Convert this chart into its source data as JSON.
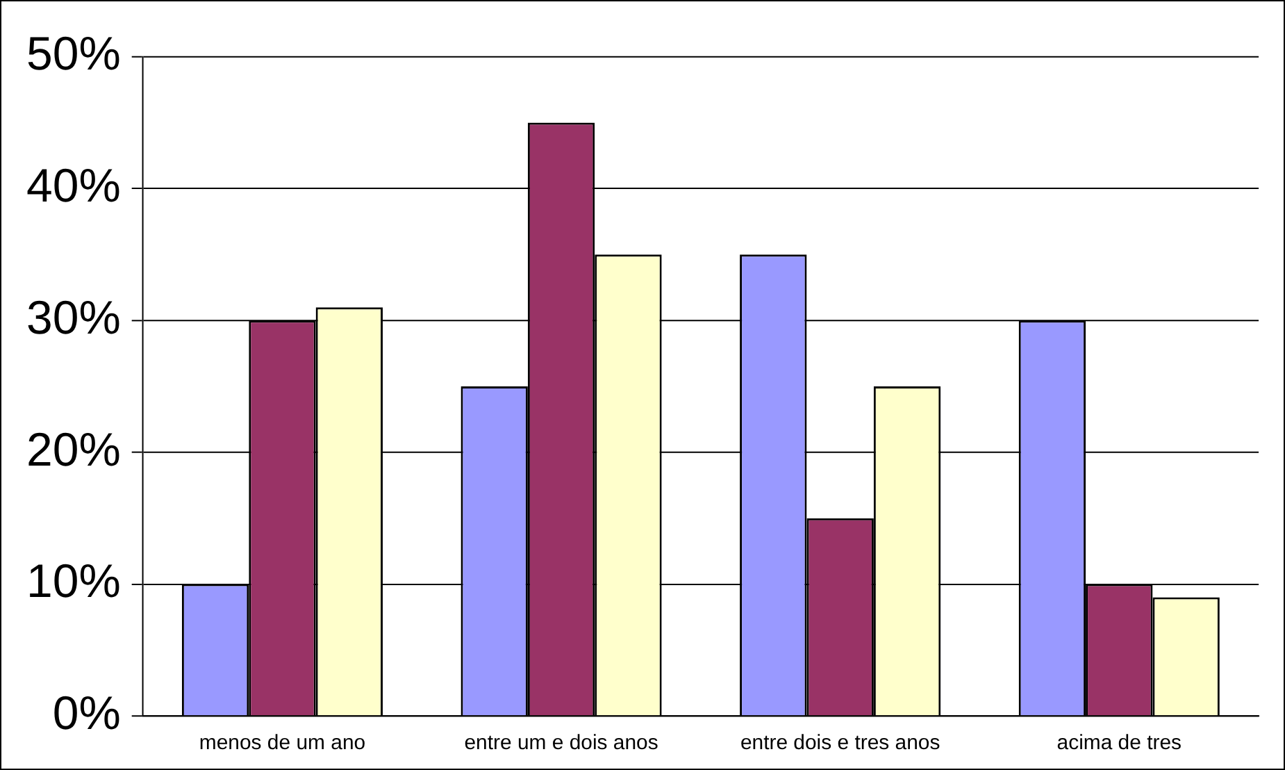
{
  "chart_data": {
    "type": "bar",
    "categories": [
      "menos de um ano",
      "entre um e dois anos",
      "entre dois e tres anos",
      "acima de tres"
    ],
    "series": [
      {
        "color": "#9999ff",
        "values": [
          10,
          25,
          35,
          30
        ]
      },
      {
        "color": "#993366",
        "values": [
          30,
          45,
          15,
          10
        ]
      },
      {
        "color": "#ffffcc",
        "values": [
          31,
          35,
          25,
          9
        ]
      }
    ],
    "ylim": [
      0,
      50
    ],
    "yticks": [
      {
        "value": 0,
        "label": "0%"
      },
      {
        "value": 10,
        "label": "10%"
      },
      {
        "value": 20,
        "label": "20%"
      },
      {
        "value": 30,
        "label": "30%"
      },
      {
        "value": 40,
        "label": "40%"
      },
      {
        "value": 50,
        "label": "50%"
      }
    ],
    "grid": "y",
    "legend": false
  }
}
